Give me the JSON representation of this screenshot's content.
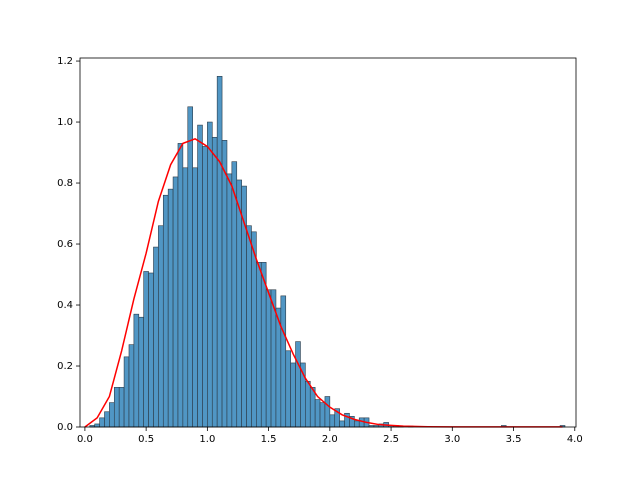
{
  "chart_data": {
    "type": "histogram",
    "bins": [
      0.04,
      0.08,
      0.12,
      0.16,
      0.2,
      0.24,
      0.28,
      0.32,
      0.36,
      0.4,
      0.44,
      0.48,
      0.52,
      0.56,
      0.6,
      0.64,
      0.68,
      0.72,
      0.76,
      0.8,
      0.84,
      0.88,
      0.92,
      0.96,
      1.0,
      1.04,
      1.08,
      1.12,
      1.16,
      1.2,
      1.24,
      1.28,
      1.32,
      1.36,
      1.4,
      1.44,
      1.48,
      1.52,
      1.56,
      1.6,
      1.64,
      1.68,
      1.72,
      1.76,
      1.8,
      1.84,
      1.88,
      1.92,
      1.96,
      2.0,
      2.04,
      2.08,
      2.12,
      2.16,
      2.2,
      2.24,
      2.28,
      2.32,
      2.36,
      2.4,
      2.44,
      2.48,
      2.52,
      2.56,
      2.6,
      2.64,
      2.68,
      2.72,
      2.76,
      2.8,
      2.84,
      2.88,
      2.92,
      2.96,
      3.0,
      3.04,
      3.08,
      3.12,
      3.16,
      3.2,
      3.24,
      3.28,
      3.32,
      3.36,
      3.4,
      3.44,
      3.48,
      3.52,
      3.56,
      3.6,
      3.64,
      3.68,
      3.72,
      3.76,
      3.8,
      3.84,
      3.88,
      3.92
    ],
    "counts": [
      0.005,
      0.01,
      0.03,
      0.05,
      0.08,
      0.13,
      0.13,
      0.23,
      0.27,
      0.37,
      0.36,
      0.51,
      0.505,
      0.59,
      0.66,
      0.76,
      0.78,
      0.82,
      0.93,
      0.85,
      1.05,
      0.85,
      0.99,
      0.92,
      1.0,
      0.95,
      1.15,
      0.94,
      0.83,
      0.87,
      0.81,
      0.79,
      0.66,
      0.64,
      0.54,
      0.54,
      0.45,
      0.45,
      0.39,
      0.43,
      0.25,
      0.21,
      0.28,
      0.21,
      0.15,
      0.13,
      0.09,
      0.08,
      0.1,
      0.04,
      0.06,
      0.02,
      0.045,
      0.035,
      0.02,
      0.03,
      0.03,
      0.005,
      0.005,
      0.01,
      0.015,
      0.005,
      0.005,
      0.003,
      0,
      0.003,
      0,
      0,
      0,
      0,
      0,
      0,
      0,
      0,
      0,
      0,
      0,
      0,
      0,
      0,
      0,
      0,
      0,
      0,
      0.005,
      0,
      0,
      0,
      0,
      0,
      0,
      0,
      0,
      0,
      0,
      0,
      0.005
    ],
    "color": "#5096c4",
    "edgecolor": "#2b3a47",
    "line": {
      "x": [
        0,
        0.1,
        0.2,
        0.3,
        0.4,
        0.5,
        0.6,
        0.7,
        0.8,
        0.9,
        1.0,
        1.1,
        1.2,
        1.3,
        1.4,
        1.5,
        1.6,
        1.7,
        1.8,
        1.9,
        2.0,
        2.1,
        2.2,
        2.3,
        2.4,
        2.6,
        2.8,
        3.0,
        3.4,
        3.9
      ],
      "values": [
        0,
        0.03,
        0.1,
        0.25,
        0.42,
        0.57,
        0.74,
        0.86,
        0.93,
        0.945,
        0.92,
        0.87,
        0.79,
        0.67,
        0.55,
        0.44,
        0.33,
        0.24,
        0.16,
        0.1,
        0.065,
        0.04,
        0.025,
        0.015,
        0.008,
        0.003,
        0.001,
        0.0005,
        0.0003,
        0.0003
      ],
      "color": "red"
    },
    "xlim": [
      -0.04,
      4.01
    ],
    "ylim": [
      0,
      1.21
    ],
    "xticks": [
      {
        "value": 0,
        "label": "0.0"
      },
      0.5,
      {
        "value": 1,
        "label": "1.0"
      },
      1.5,
      {
        "value": 2,
        "label": "2.0"
      },
      2.5,
      {
        "value": 3,
        "label": "3.0"
      },
      3.5,
      {
        "value": 4,
        "label": "4.0"
      }
    ],
    "yticks": [
      {
        "value": 0,
        "label": "0.0"
      },
      0.2,
      0.4,
      0.6,
      0.8,
      {
        "value": 1,
        "label": "1.0"
      },
      1.2
    ]
  }
}
